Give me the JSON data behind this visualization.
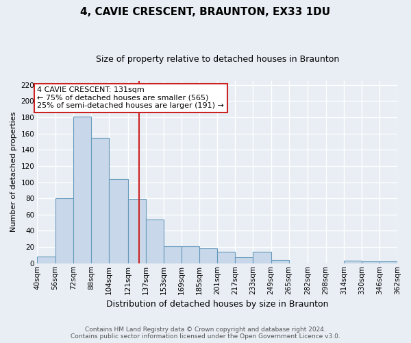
{
  "title": "4, CAVIE CRESCENT, BRAUNTON, EX33 1DU",
  "subtitle": "Size of property relative to detached houses in Braunton",
  "xlabel": "Distribution of detached houses by size in Braunton",
  "ylabel": "Number of detached properties",
  "footer_line1": "Contains HM Land Registry data © Crown copyright and database right 2024.",
  "footer_line2": "Contains public sector information licensed under the Open Government Licence v3.0.",
  "bar_color": "#c8d8ea",
  "bar_edge_color": "#6699bb",
  "marker_line_color": "#cc2222",
  "annotation_box_edge_color": "#cc2222",
  "annotation_text_line1": "4 CAVIE CRESCENT: 131sqm",
  "annotation_text_line2": "← 75% of detached houses are smaller (565)",
  "annotation_text_line3": "25% of semi-detached houses are larger (191) →",
  "property_size": 131,
  "bin_edges": [
    40,
    56,
    72,
    88,
    104,
    121,
    137,
    153,
    169,
    185,
    201,
    217,
    233,
    249,
    265,
    282,
    298,
    314,
    330,
    346,
    362
  ],
  "bin_counts": [
    8,
    80,
    181,
    155,
    104,
    79,
    54,
    21,
    21,
    18,
    14,
    7,
    14,
    4,
    0,
    0,
    0,
    3,
    2,
    2
  ],
  "ylim": [
    0,
    225
  ],
  "yticks": [
    0,
    20,
    40,
    60,
    80,
    100,
    120,
    140,
    160,
    180,
    200,
    220
  ],
  "background_color": "#e8eef4",
  "plot_background": "#e8eef4",
  "grid_color": "#ffffff",
  "title_fontsize": 11,
  "subtitle_fontsize": 9,
  "xlabel_fontsize": 9,
  "ylabel_fontsize": 8,
  "tick_fontsize": 7.5,
  "annotation_fontsize": 8,
  "footer_fontsize": 6.5
}
